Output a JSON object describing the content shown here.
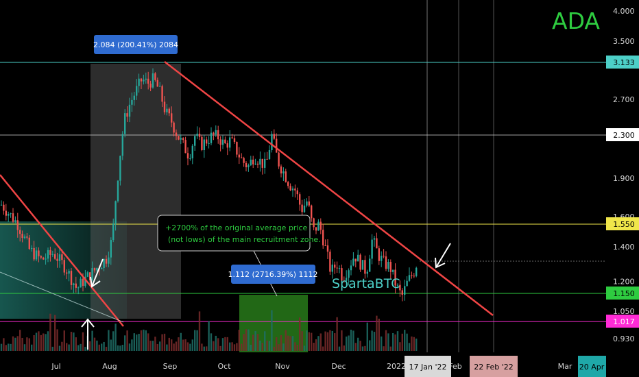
{
  "chart_data": {
    "type": "candlestick",
    "symbol": "ADA",
    "author": "SpartaBTC",
    "y_scale": "log",
    "ylim": [
      0.88,
      4.1
    ],
    "y_ticks": [
      "4.000",
      "3.500",
      "2.700",
      "2.300",
      "1.900",
      "1.600",
      "1.400",
      "1.200",
      "1.050",
      "0.930"
    ],
    "x_ticks": [
      "Jul",
      "Aug",
      "Sep",
      "Oct",
      "Nov",
      "Dec",
      "2022",
      "Feb",
      "Mar",
      "Apr"
    ],
    "horizontal_levels": [
      {
        "label": "3.133",
        "value": 3.133,
        "color": "#4dd0c8"
      },
      {
        "label": "2.300",
        "value": 2.3,
        "color": "#d9d9d9"
      },
      {
        "label": "1.550",
        "value": 1.55,
        "color": "#f0e64a"
      },
      {
        "label": "1.150",
        "value": 1.15,
        "color": "#2ecc40"
      },
      {
        "label": "1.017",
        "value": 1.017,
        "color": "#ff2bd6"
      }
    ],
    "date_markers": [
      {
        "label": "17 Jan '22",
        "color": "#d9d9d9"
      },
      {
        "label": "22 Feb '22",
        "color": "#d6a0a0"
      },
      {
        "label": "20 Apr",
        "color": "#1fa8a8"
      }
    ],
    "measurements": [
      {
        "label": "2.084 (200.41%) 2084"
      },
      {
        "label": "1.112 (2716.39%) 1112"
      }
    ],
    "annotation": {
      "line1": "+2700% of the original average price",
      "line2": "(not lows) of the main recruitment zone."
    },
    "series_path": [
      [
        0.0,
        1.7
      ],
      [
        0.03,
        1.55
      ],
      [
        0.05,
        1.38
      ],
      [
        0.07,
        1.32
      ],
      [
        0.09,
        1.36
      ],
      [
        0.11,
        1.28
      ],
      [
        0.12,
        1.22
      ],
      [
        0.13,
        1.16
      ],
      [
        0.14,
        1.2
      ],
      [
        0.16,
        1.26
      ],
      [
        0.18,
        1.33
      ],
      [
        0.19,
        1.45
      ],
      [
        0.2,
        1.95
      ],
      [
        0.21,
        2.45
      ],
      [
        0.22,
        2.65
      ],
      [
        0.23,
        2.8
      ],
      [
        0.24,
        2.95
      ],
      [
        0.25,
        2.9
      ],
      [
        0.26,
        2.95
      ],
      [
        0.27,
        2.8
      ],
      [
        0.28,
        2.55
      ],
      [
        0.29,
        2.45
      ],
      [
        0.3,
        2.3
      ],
      [
        0.31,
        2.2
      ],
      [
        0.32,
        2.1
      ],
      [
        0.33,
        2.3
      ],
      [
        0.34,
        2.2
      ],
      [
        0.35,
        2.25
      ],
      [
        0.36,
        2.3
      ],
      [
        0.37,
        2.28
      ],
      [
        0.38,
        2.2
      ],
      [
        0.39,
        2.25
      ],
      [
        0.4,
        2.15
      ],
      [
        0.41,
        2.05
      ],
      [
        0.42,
        2.0
      ],
      [
        0.43,
        2.1
      ],
      [
        0.44,
        2.05
      ],
      [
        0.45,
        2.0
      ],
      [
        0.46,
        2.3
      ],
      [
        0.47,
        2.05
      ],
      [
        0.48,
        1.95
      ],
      [
        0.49,
        1.85
      ],
      [
        0.5,
        1.8
      ],
      [
        0.51,
        1.65
      ],
      [
        0.52,
        1.72
      ],
      [
        0.53,
        1.5
      ],
      [
        0.54,
        1.55
      ],
      [
        0.55,
        1.4
      ],
      [
        0.56,
        1.25
      ],
      [
        0.57,
        1.3
      ],
      [
        0.58,
        1.22
      ],
      [
        0.59,
        1.28
      ],
      [
        0.6,
        1.35
      ],
      [
        0.61,
        1.3
      ],
      [
        0.62,
        1.25
      ],
      [
        0.63,
        1.45
      ],
      [
        0.64,
        1.35
      ],
      [
        0.65,
        1.3
      ],
      [
        0.66,
        1.28
      ],
      [
        0.67,
        1.18
      ],
      [
        0.68,
        1.12
      ],
      [
        0.69,
        1.2
      ],
      [
        0.7,
        1.25
      ],
      [
        0.71,
        1.35
      ]
    ]
  }
}
